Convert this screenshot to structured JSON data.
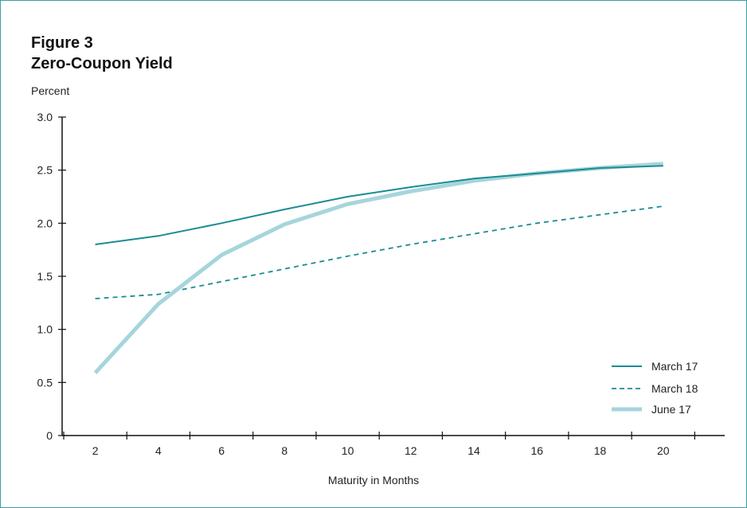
{
  "figure": {
    "number": "Figure 3",
    "title": "Zero-Coupon Yield",
    "unit_label": "Percent",
    "x_axis_title": "Maturity in Months"
  },
  "colors": {
    "frame": "#3a9fa6",
    "march17": "#1b8c94",
    "march18": "#1b8c94",
    "june17": "#a6d5dc",
    "axis": "#111111"
  },
  "chart_data": {
    "type": "line",
    "title": "Zero-Coupon Yield",
    "xlabel": "Maturity in Months",
    "ylabel": "Percent",
    "x": [
      2,
      4,
      6,
      8,
      10,
      12,
      14,
      16,
      18,
      20
    ],
    "x_ticks": [
      "2",
      "4",
      "6",
      "8",
      "10",
      "12",
      "14",
      "16",
      "18",
      "20"
    ],
    "y_ticks": [
      "0",
      "0.5",
      "1.0",
      "1.5",
      "2.0",
      "2.5",
      "3.0"
    ],
    "ylim": [
      0,
      3.0
    ],
    "xlim": [
      1,
      22
    ],
    "grid": false,
    "legend_position": "bottom-right",
    "series": [
      {
        "name": "March 17",
        "style": "solid",
        "values": [
          1.8,
          1.88,
          2.0,
          2.13,
          2.25,
          2.34,
          2.42,
          2.47,
          2.52,
          2.54
        ]
      },
      {
        "name": "March 18",
        "style": "dashed",
        "values": [
          1.29,
          1.33,
          1.45,
          1.57,
          1.69,
          1.8,
          1.9,
          2.0,
          2.08,
          2.16
        ]
      },
      {
        "name": "June 17",
        "style": "thick",
        "values": [
          0.59,
          1.24,
          1.7,
          1.99,
          2.18,
          2.3,
          2.4,
          2.47,
          2.52,
          2.56
        ]
      }
    ]
  }
}
